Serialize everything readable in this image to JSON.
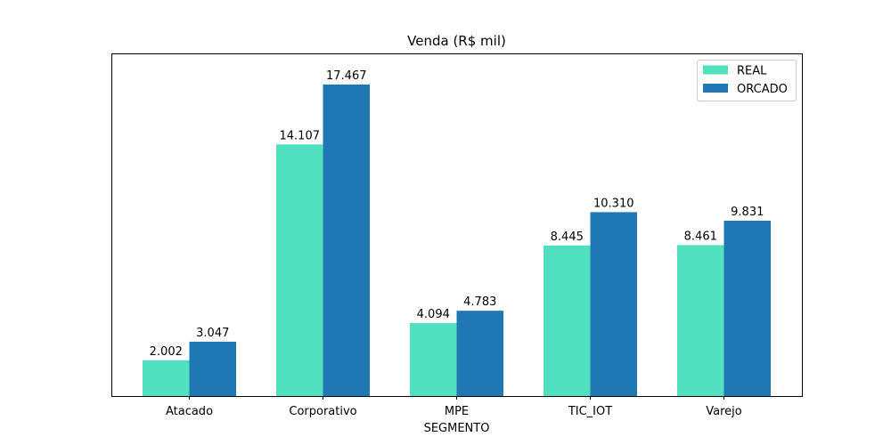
{
  "chart_data": {
    "type": "bar",
    "title": "Venda (R$ mil)",
    "xlabel": "SEGMENTO",
    "ylabel": "",
    "categories": [
      "Atacado",
      "Corporativo",
      "MPE",
      "TIC_IOT",
      "Varejo"
    ],
    "series": [
      {
        "name": "REAL",
        "color": "#50e0bf",
        "values": [
          2002,
          14107,
          4094,
          8445,
          8461
        ],
        "labels": [
          "2.002",
          "14.107",
          "4.094",
          "8.445",
          "8.461"
        ]
      },
      {
        "name": "ORCADO",
        "color": "#1f77b4",
        "values": [
          3047,
          17467,
          4783,
          10310,
          9831
        ],
        "labels": [
          "3.047",
          "17.467",
          "4.783",
          "10.310",
          "9.831"
        ]
      }
    ],
    "ylim": [
      0,
      19211
    ],
    "y_axis_visible": false,
    "grid": false,
    "legend_position": "top-right"
  }
}
